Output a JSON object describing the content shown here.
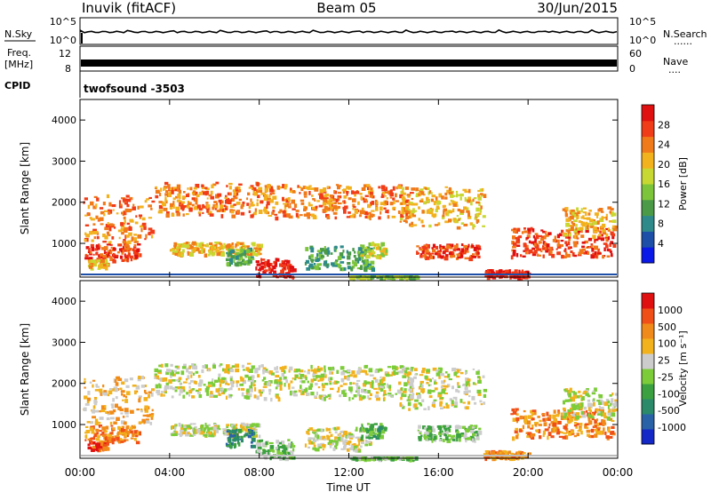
{
  "header": {
    "station": "Inuvik (fitACF)",
    "beam": "Beam 05",
    "date": "30/Jun/2015"
  },
  "labels": {
    "nsky": "N.Sky",
    "nsearch": "N.Search",
    "freq_line1": "Freq.",
    "freq_line2": "[MHz]",
    "nave": "Nave",
    "cpid": "CPID",
    "cpid_value": "twofsound -3503",
    "nsky_ticks": [
      "10^5",
      "10^0"
    ],
    "nsearch_ticks": [
      "10^5",
      "10^0"
    ],
    "freq_ticks": [
      "12",
      "8"
    ],
    "nave_ticks": [
      "60",
      "0"
    ],
    "dots": "......",
    "dots_short": "...."
  },
  "chart_data": [
    {
      "type": "heatmap",
      "title": "",
      "xlabel": "Time UT",
      "ylabel": "Slant Range [km]",
      "x_ticks": [
        "00:00",
        "04:00",
        "08:00",
        "12:00",
        "16:00",
        "20:00",
        "00:00"
      ],
      "y_ticks": [
        1000,
        2000,
        3000,
        4000
      ],
      "ylim": [
        180,
        4500
      ],
      "xlim_hours": [
        0,
        24
      ],
      "colorbar": {
        "label": "Power [dB]",
        "ticks": [
          "4",
          "8",
          "12",
          "16",
          "20",
          "24",
          "28"
        ],
        "colors": [
          "#0a18e8",
          "#1e4fa8",
          "#2e8a8a",
          "#4a9a48",
          "#7cc43a",
          "#c8d832",
          "#f2b21e",
          "#f07a1a",
          "#f03c18",
          "#e01010"
        ]
      }
    },
    {
      "type": "heatmap",
      "title": "",
      "xlabel": "Time UT",
      "ylabel": "Slant Range [km]",
      "x_ticks": [
        "00:00",
        "04:00",
        "08:00",
        "12:00",
        "16:00",
        "20:00",
        "00:00"
      ],
      "y_ticks": [
        1000,
        2000,
        3000,
        4000
      ],
      "ylim": [
        180,
        4500
      ],
      "xlim_hours": [
        0,
        24
      ],
      "colorbar": {
        "label": "Velocity [m s⁻¹]",
        "ticks": [
          "1000",
          "500",
          "100",
          "25",
          "-25",
          "-100",
          "-500",
          "-1000"
        ],
        "colors": [
          "#1428c8",
          "#2a62a8",
          "#2a8a6a",
          "#3aa040",
          "#7ccc3a",
          "#cccccc",
          "#f2b21e",
          "#f08a1a",
          "#f05018",
          "#e01010"
        ]
      }
    }
  ]
}
